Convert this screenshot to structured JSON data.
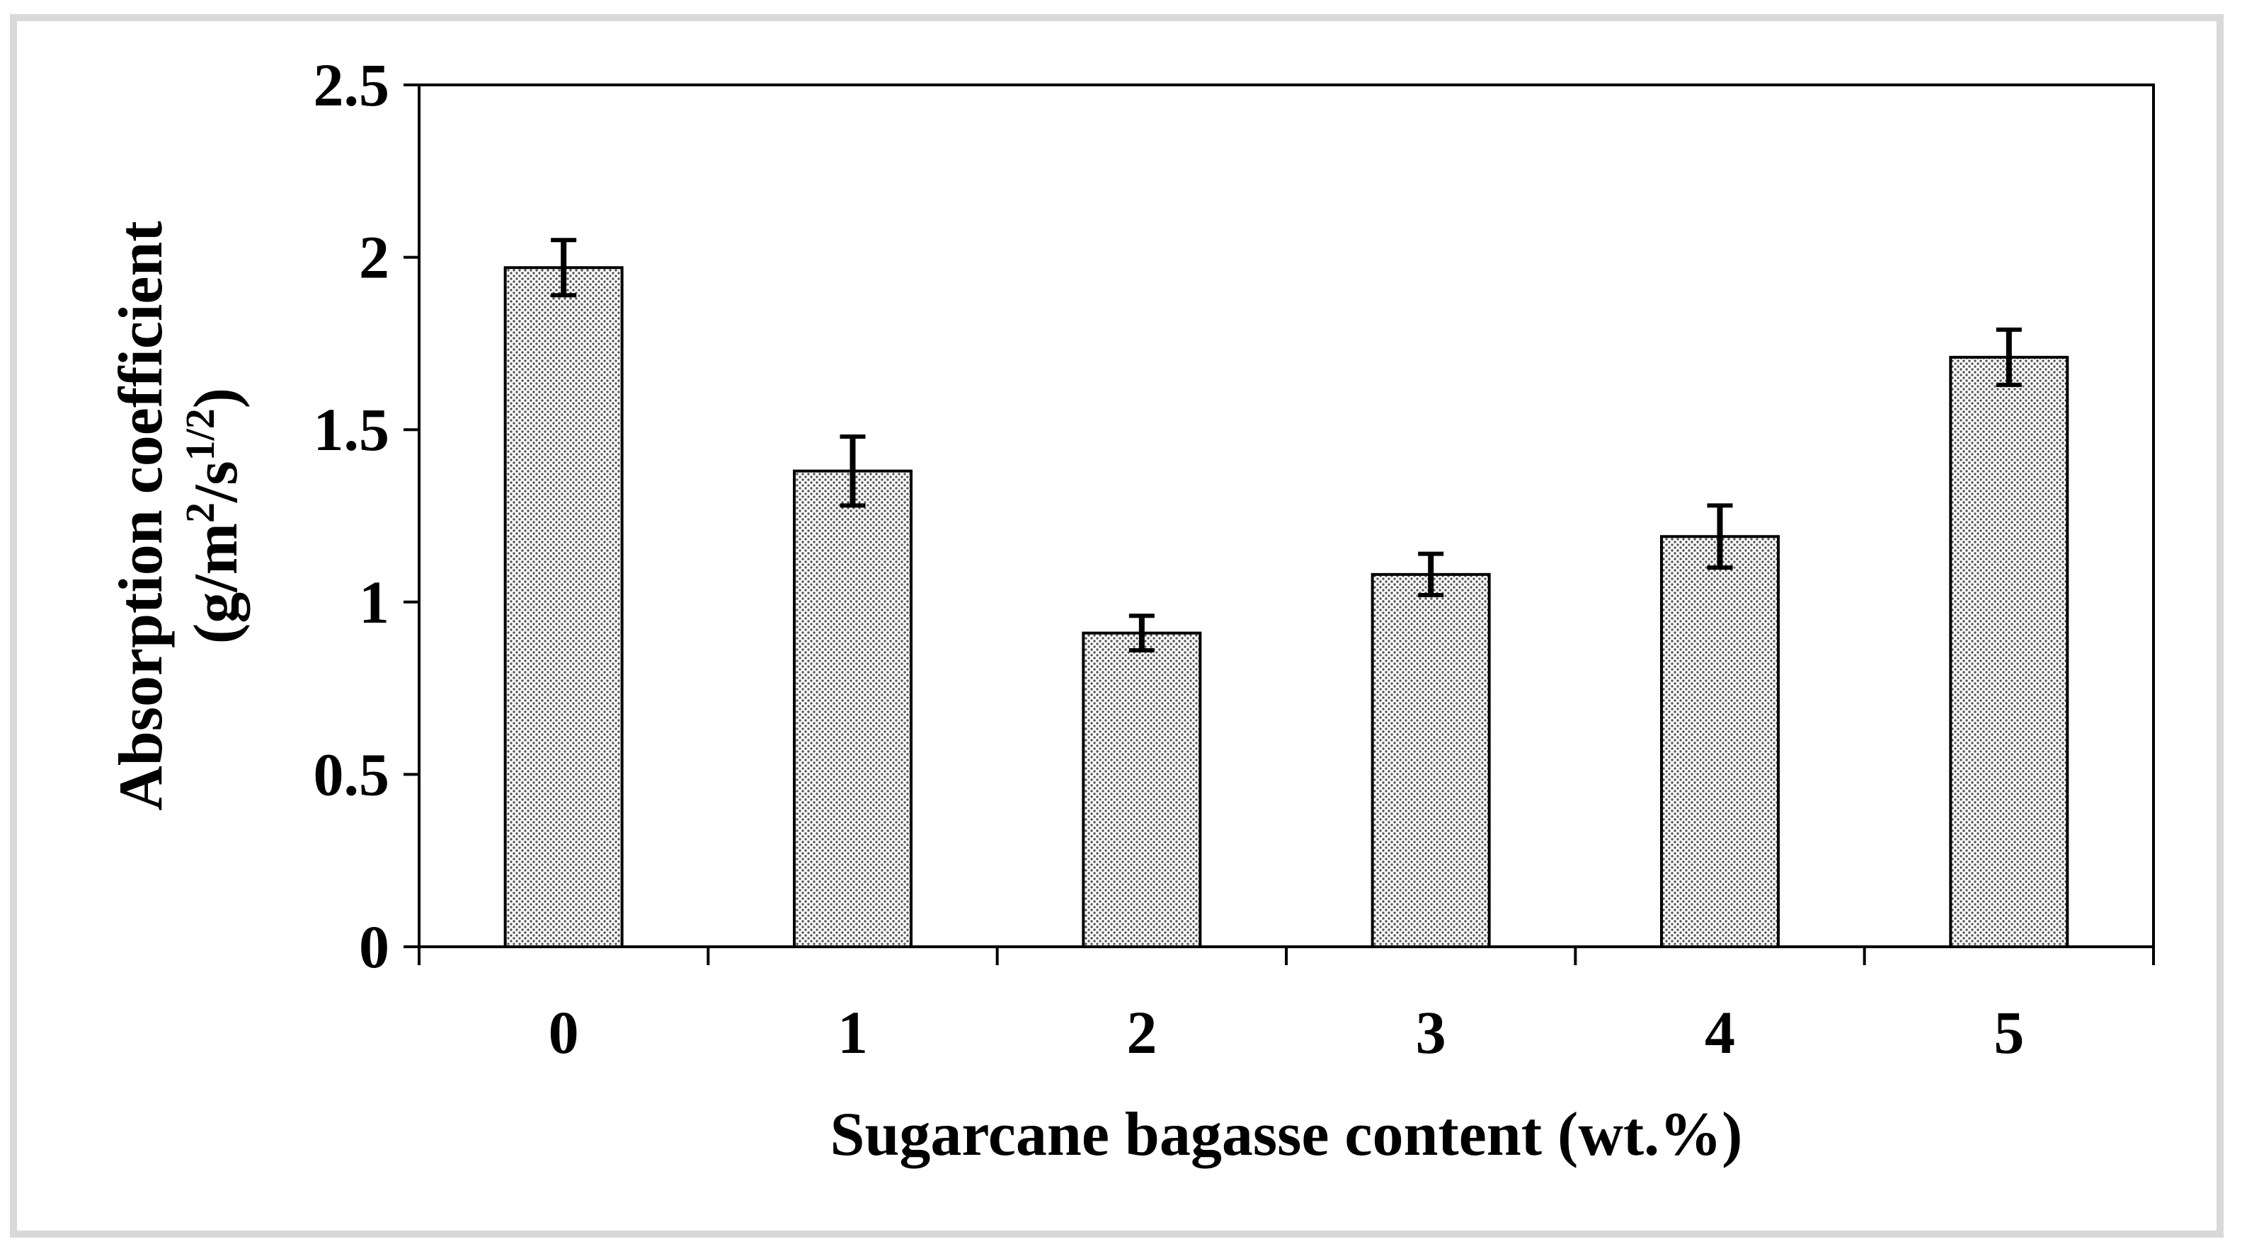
{
  "chart_data": {
    "type": "bar",
    "categories": [
      "0",
      "1",
      "2",
      "3",
      "4",
      "5"
    ],
    "values": [
      1.97,
      1.38,
      0.91,
      1.08,
      1.19,
      1.71
    ],
    "errors": [
      0.08,
      0.1,
      0.05,
      0.06,
      0.09,
      0.08
    ],
    "xlabel": "Sugarcane bagasse content (wt.%)",
    "ylabel_line1": "Absorption coefficient",
    "ylabel_line2": {
      "prefix": "(g/m",
      "sup1": "2",
      "middle": "/s",
      "sup2": "1/2",
      "suffix": ")"
    },
    "ylim": [
      0,
      2.5
    ],
    "yticks": [
      "0",
      "0.5",
      "1",
      "1.5",
      "2",
      "2.5"
    ],
    "grid": false,
    "legend": "none",
    "bar_fill": "dotted-gray",
    "colors": {
      "bar_dot": "#555555",
      "bar_edge": "#000000",
      "frame": "#d9d9d9"
    }
  }
}
